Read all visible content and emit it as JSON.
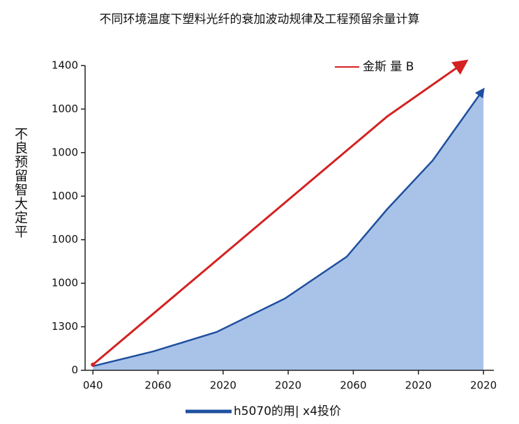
{
  "chart_data": {
    "type": "line",
    "title": "不同环境温度下塑料光纤的衰加波动规律及工程预留余量计算",
    "y_label": "不良预留智大定平",
    "xlim": [
      -0.12,
      6.16
    ],
    "xticks": [
      {
        "value": 0,
        "label": "040"
      },
      {
        "value": 1,
        "label": "2060"
      },
      {
        "value": 2,
        "label": "2020"
      },
      {
        "value": 3,
        "label": "2020"
      },
      {
        "value": 4,
        "label": "2060"
      },
      {
        "value": 5,
        "label": "2020"
      },
      {
        "value": 6,
        "label": "2020"
      }
    ],
    "ylim": [
      0,
      1400
    ],
    "yticks": [
      0,
      {
        "value": 200,
        "label": "1300"
      },
      {
        "value": 400,
        "label": "1000"
      },
      {
        "value": 600,
        "label": "1000"
      },
      {
        "value": 800,
        "label": "1000"
      },
      {
        "value": 1000,
        "label": "1000"
      },
      {
        "value": 1200,
        "label": "1000"
      },
      1400
    ],
    "series": [
      {
        "name": "金斯 量 B",
        "color": "#d42121",
        "area": false,
        "x": [
          0,
          4.52,
          5.73
        ],
        "values": [
          26,
          1166,
          1419
        ]
      },
      {
        "name": "h5070的用| x4投价",
        "color": "#1f4f9e",
        "area": true,
        "fill_color": "#a9c3e8",
        "x": [
          0,
          0.93,
          1.9,
          2.95,
          3.9,
          4.52,
          5.22,
          6
        ],
        "values": [
          19,
          87,
          176,
          330,
          522,
          740,
          964,
          1291
        ]
      }
    ]
  }
}
